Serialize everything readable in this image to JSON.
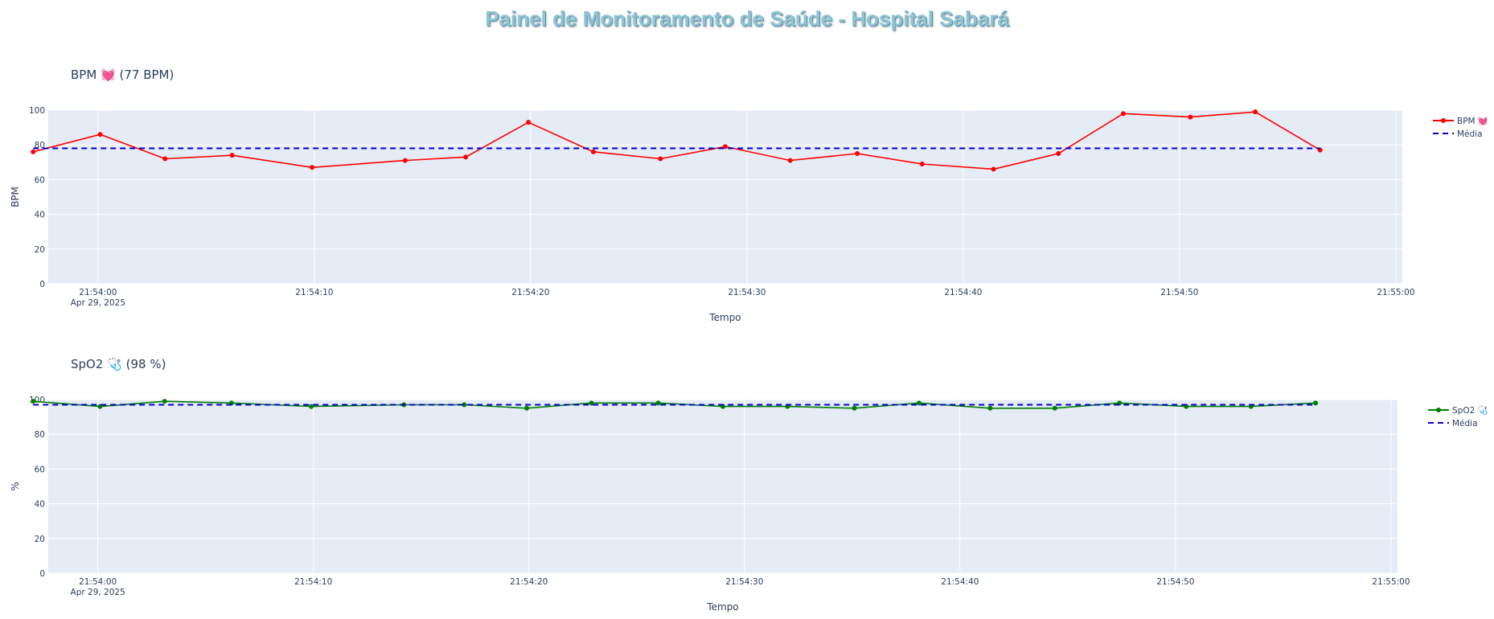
{
  "page": {
    "title": "Painel de Monitoramento de Saúde - Hospital Sabará"
  },
  "chart_data": [
    {
      "type": "line",
      "title": "BPM 💓 (77 BPM)",
      "xlabel": "Tempo",
      "ylabel": "BPM",
      "ylim": [
        0,
        100
      ],
      "yticks": [
        0,
        20,
        40,
        60,
        80,
        100
      ],
      "xlim": [
        "21:53:57.7",
        "21:55:00.3"
      ],
      "xticks": [
        "21:54:00",
        "21:54:10",
        "21:54:20",
        "21:54:30",
        "21:54:40",
        "21:54:50",
        "21:55:00"
      ],
      "xtick_labels": [
        "21:54:00",
        "21:54:10",
        "21:54:20",
        "21:54:30",
        "21:54:40",
        "21:54:50",
        "21:55:00"
      ],
      "xtick_date_label": "Apr 29, 2025",
      "grid": true,
      "legend_position": "top-right",
      "x": [
        "21:53:57.0",
        "21:54:00.1",
        "21:54:03.1",
        "21:54:06.2",
        "21:54:09.9",
        "21:54:14.2",
        "21:54:17.0",
        "21:54:19.9",
        "21:54:22.9",
        "21:54:26.0",
        "21:54:29.0",
        "21:54:32.0",
        "21:54:35.1",
        "21:54:38.1",
        "21:54:41.4",
        "21:54:44.4",
        "21:54:47.4",
        "21:54:50.5",
        "21:54:53.5",
        "21:54:56.5"
      ],
      "series": [
        {
          "name": "BPM 💓",
          "color": "#ff0000",
          "style": "lines+markers",
          "values": [
            76,
            86,
            72,
            74,
            67,
            71,
            73,
            93,
            76,
            72,
            79,
            71,
            75,
            69,
            66,
            75,
            98,
            96,
            99,
            77
          ]
        },
        {
          "name": "Média",
          "color": "#0000cc",
          "style": "dash",
          "values": [
            78,
            78,
            78,
            78,
            78,
            78,
            78,
            78,
            78,
            78,
            78,
            78,
            78,
            78,
            78,
            78,
            78,
            78,
            78,
            78
          ]
        }
      ]
    },
    {
      "type": "line",
      "title": "SpO2 🩺 (98 %)",
      "xlabel": "Tempo",
      "ylabel": "%",
      "ylim": [
        0,
        100
      ],
      "yticks": [
        0,
        20,
        40,
        60,
        80,
        100
      ],
      "xlim": [
        "21:53:57.7",
        "21:55:00.3"
      ],
      "xticks": [
        "21:54:00",
        "21:54:10",
        "21:54:20",
        "21:54:30",
        "21:54:40",
        "21:54:50",
        "21:55:00"
      ],
      "xtick_labels": [
        "21:54:00",
        "21:54:10",
        "21:54:20",
        "21:54:30",
        "21:54:40",
        "21:54:50",
        "21:55:00"
      ],
      "xtick_date_label": "Apr 29, 2025",
      "grid": true,
      "legend_position": "top-right",
      "x": [
        "21:53:57.0",
        "21:54:00.1",
        "21:54:03.1",
        "21:54:06.2",
        "21:54:09.9",
        "21:54:14.2",
        "21:54:17.0",
        "21:54:19.9",
        "21:54:22.9",
        "21:54:26.0",
        "21:54:29.0",
        "21:54:32.0",
        "21:54:35.1",
        "21:54:38.1",
        "21:54:41.4",
        "21:54:44.4",
        "21:54:47.4",
        "21:54:50.5",
        "21:54:53.5",
        "21:54:56.5"
      ],
      "series": [
        {
          "name": "SpO2 🩺",
          "color": "#008000",
          "style": "lines+markers",
          "values": [
            99,
            96,
            99,
            98,
            96,
            97,
            97,
            95,
            98,
            98,
            96,
            96,
            95,
            98,
            95,
            95,
            98,
            96,
            96,
            98
          ]
        },
        {
          "name": "Média",
          "color": "#0000cc",
          "style": "dash",
          "values": [
            97,
            97,
            97,
            97,
            97,
            97,
            97,
            97,
            97,
            97,
            97,
            97,
            97,
            97,
            97,
            97,
            97,
            97,
            97,
            97
          ]
        }
      ]
    }
  ]
}
